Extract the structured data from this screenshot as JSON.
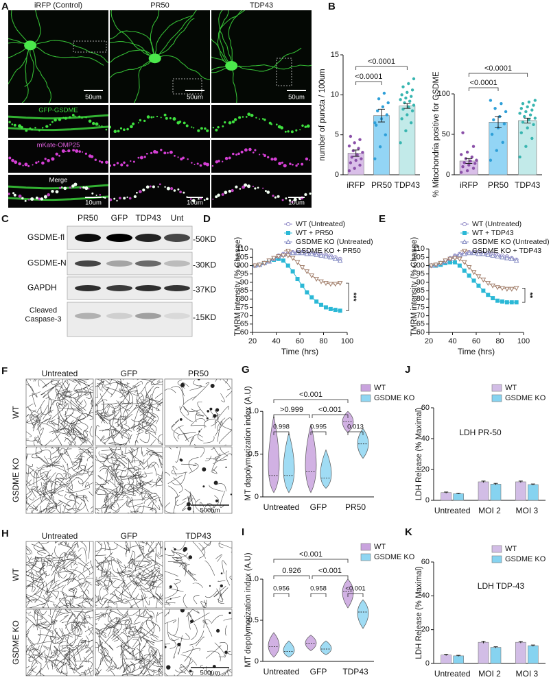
{
  "image_panels": {
    "A": {
      "letter": "A",
      "columns": [
        "iRFP (Control)",
        "PR50",
        "TDP43"
      ],
      "scale_top": [
        "50um",
        "50um",
        "50um"
      ],
      "rows": [
        "GFP-GSDME",
        "mKate-OMP25",
        "Merge"
      ],
      "scale_bottom": [
        "10um",
        "10um",
        "10um"
      ]
    },
    "F": {
      "letter": "F",
      "columns": [
        "Untreated",
        "GFP",
        "PR50"
      ],
      "rows": [
        "WT",
        "GSDME KO"
      ],
      "scale": "500um"
    },
    "H": {
      "letter": "H",
      "columns": [
        "Untreated",
        "GFP",
        "TDP43"
      ],
      "rows": [
        "WT",
        "GSDME KO"
      ],
      "scale": "500um"
    }
  },
  "blot": {
    "letter": "C",
    "lanes": [
      "PR50",
      "GFP",
      "TDP43",
      "Unt"
    ],
    "rows": [
      {
        "name": "GSDME-fl",
        "size": "-50KD"
      },
      {
        "name": "GSDME-N",
        "size": "-30KD"
      },
      {
        "name": "GAPDH",
        "size": "-37KD"
      },
      {
        "name": "Cleaved Caspase-3",
        "size": "-15KD"
      }
    ]
  },
  "chart_data": [
    {
      "type": "bar",
      "letter": "B",
      "ylabel": "number of puncta / 100um",
      "categories": [
        "iRFP",
        "PR50",
        "TDP43"
      ],
      "colors": [
        "#d9bfe8",
        "#93d5f5",
        "#c2eae9"
      ],
      "point_colors": [
        "#8a4fa8",
        "#2e9fd8",
        "#38b5b0"
      ],
      "values": [
        2.7,
        7.4,
        8.6
      ],
      "errors": [
        0.4,
        0.8,
        0.3
      ],
      "points": [
        [
          0.5,
          0.8,
          1.2,
          1.5,
          1.8,
          2.0,
          2.2,
          2.5,
          2.8,
          3.0,
          3.3,
          3.6,
          4.0,
          4.4,
          4.8
        ],
        [
          2.0,
          3.5,
          5.0,
          6.2,
          7.0,
          7.5,
          8.0,
          8.5,
          9.0,
          9.5,
          10.2,
          6.5
        ],
        [
          4.0,
          5.5,
          6.5,
          7.0,
          7.5,
          8.0,
          8.2,
          8.5,
          8.7,
          9.0,
          9.2,
          9.4,
          9.6,
          9.8,
          10.0,
          10.3,
          10.6,
          11.0,
          11.4,
          12.0
        ]
      ],
      "ylim": [
        0,
        15
      ],
      "yticks": [
        0,
        5,
        10,
        15
      ],
      "annotations": [
        "<0.0001",
        "<0.0001"
      ]
    },
    {
      "type": "bar",
      "ylabel": "% Mitochondria positive for GSDME",
      "categories": [
        "iRFP",
        "PR50",
        "TDP43"
      ],
      "colors": [
        "#d9bfe8",
        "#93d5f5",
        "#c2eae9"
      ],
      "point_colors": [
        "#8a4fa8",
        "#2e9fd8",
        "#38b5b0"
      ],
      "values": [
        17,
        65,
        67
      ],
      "errors": [
        3,
        7,
        3
      ],
      "points": [
        [
          3,
          5,
          8,
          10,
          12,
          14,
          15,
          17,
          18,
          20,
          22,
          25,
          28,
          35,
          52
        ],
        [
          18,
          30,
          40,
          50,
          58,
          63,
          68,
          72,
          78,
          82,
          88,
          92
        ],
        [
          22,
          35,
          45,
          52,
          58,
          62,
          65,
          68,
          70,
          72,
          74,
          76,
          78,
          80,
          82,
          84,
          86,
          88,
          90,
          92
        ]
      ],
      "ylim": [
        0,
        100
      ],
      "yticks": [
        0,
        50,
        100
      ],
      "annotations": [
        "<0.0001",
        "<0.0001"
      ]
    },
    {
      "type": "line",
      "letter": "D",
      "ylabel": "TMRM intensity (% Change)",
      "xlabel": "Time (hrs)",
      "x": [
        22,
        26,
        30,
        34,
        38,
        42,
        46,
        50,
        54,
        58,
        62,
        66,
        70,
        74,
        78,
        82,
        86,
        90,
        94
      ],
      "series": [
        {
          "name": "WT (Untreated)",
          "color": "#8c84c4",
          "marker": "circle",
          "values": [
            100,
            100.5,
            101.5,
            103,
            104.5,
            106,
            107,
            107.5,
            108,
            108,
            108,
            108,
            107.5,
            107,
            107,
            106.5,
            106,
            105,
            104
          ]
        },
        {
          "name": "WT + PR50",
          "color": "#2bb8d6",
          "marker": "square",
          "values": [
            100,
            100.5,
            101.5,
            102.5,
            103.5,
            104,
            103,
            100,
            96.5,
            92,
            88,
            84,
            81,
            78.5,
            76.5,
            75,
            74,
            73.5,
            73
          ]
        },
        {
          "name": "GSDME KO (Untreated)",
          "color": "#7f86c0",
          "marker": "triangle",
          "values": [
            100,
            100.5,
            101.5,
            102.5,
            104,
            105.5,
            106.5,
            107,
            107.5,
            107.5,
            107.5,
            107,
            107,
            106.5,
            106,
            105.5,
            105,
            104,
            103
          ]
        },
        {
          "name": "GSDME KO + PR50",
          "color": "#a07c68",
          "marker": "triangle-down",
          "values": [
            100,
            100.5,
            101.5,
            103,
            104.5,
            105.5,
            106,
            106,
            104.5,
            102,
            99,
            96.5,
            94,
            92,
            90.5,
            89.5,
            89,
            89,
            89.5
          ]
        }
      ],
      "xlim": [
        20,
        100
      ],
      "xticks": [
        20,
        40,
        60,
        80,
        100
      ],
      "ylim": [
        60,
        115
      ],
      "yticks": [
        60,
        65,
        70,
        75,
        80,
        85,
        90,
        95,
        100,
        105,
        110
      ],
      "annotation": "***"
    },
    {
      "type": "line",
      "letter": "E",
      "ylabel": "TMRM intensity (% Change)",
      "xlabel": "Time (hrs)",
      "x": [
        22,
        26,
        30,
        34,
        38,
        42,
        46,
        50,
        54,
        58,
        62,
        66,
        70,
        74,
        78,
        82,
        86,
        90,
        94
      ],
      "series": [
        {
          "name": "WT (Untreated)",
          "color": "#8c84c4",
          "marker": "circle",
          "values": [
            100,
            100.5,
            101.5,
            103,
            104.5,
            106,
            107,
            107.5,
            108,
            108,
            108,
            107.5,
            107.5,
            107,
            106.5,
            106,
            105.5,
            104.5,
            103.5
          ]
        },
        {
          "name": "WT + TDP43",
          "color": "#2bb8d6",
          "marker": "square",
          "values": [
            100,
            100,
            100.5,
            101.5,
            102,
            102,
            100,
            97,
            94,
            91,
            88,
            85,
            82.5,
            80.5,
            79,
            78.5,
            78,
            78,
            78
          ]
        },
        {
          "name": "GSDME KO (Untreated)",
          "color": "#7f86c0",
          "marker": "triangle",
          "values": [
            100,
            100.5,
            101.5,
            102.5,
            104,
            105.5,
            106.5,
            107,
            107.5,
            107.5,
            107,
            107,
            106.5,
            106,
            105.5,
            105,
            104.5,
            104,
            103
          ]
        },
        {
          "name": "GSDME KO + TDP43",
          "color": "#a07c68",
          "marker": "triangle-down",
          "values": [
            100,
            100.5,
            101.5,
            103,
            104,
            104.5,
            104,
            102,
            99,
            96,
            93.5,
            91.5,
            89.5,
            88,
            87,
            86.5,
            86,
            86,
            86.5
          ]
        }
      ],
      "xlim": [
        20,
        100
      ],
      "xticks": [
        20,
        40,
        60,
        80,
        100
      ],
      "ylim": [
        60,
        115
      ],
      "yticks": [
        60,
        65,
        70,
        75,
        80,
        85,
        90,
        95,
        100,
        105,
        110
      ],
      "annotation": "**"
    },
    {
      "type": "violin",
      "letter": "G",
      "ylabel": "MT depolymerization index (A.U)",
      "categories": [
        "Untreated",
        "GFP",
        "PR50"
      ],
      "series": [
        {
          "name": "WT",
          "color": "#c9a3de",
          "values": [
            0.25,
            0.3,
            0.88
          ],
          "ranges": [
            [
              0.05,
              0.95
            ],
            [
              0.05,
              0.85
            ],
            [
              0.75,
              1.0
            ]
          ]
        },
        {
          "name": "GSDME KO",
          "color": "#8fd6f2",
          "values": [
            0.25,
            0.22,
            0.62
          ],
          "ranges": [
            [
              0.05,
              0.75
            ],
            [
              0.1,
              0.55
            ],
            [
              0.45,
              0.8
            ]
          ]
        }
      ],
      "ylim": [
        0,
        1.25
      ],
      "yticks": [
        0,
        0.5,
        {
          "value": 1,
          "label": "1.0"
        }
      ],
      "annotations": [
        "<0.001",
        ">0.999",
        "<0.001",
        "0.998",
        "0.995",
        "0.013"
      ]
    },
    {
      "type": "grouped_bar",
      "letter": "J",
      "ylabel": "LDH Release (% Maximal)",
      "annotation": "LDH PR-50",
      "categories": [
        "Untreated",
        "MOI 2",
        "MOI 3"
      ],
      "series": [
        {
          "name": "WT",
          "color": "#d2bde6",
          "values": [
            5,
            12,
            12
          ],
          "errors": [
            0.4,
            0.5,
            0.5
          ]
        },
        {
          "name": "GSDME KO",
          "color": "#86d3f0",
          "values": [
            4.3,
            10.5,
            10.2
          ],
          "errors": [
            0.3,
            0.5,
            0.4
          ]
        }
      ],
      "ylim": [
        0,
        60
      ],
      "yticks": [
        0,
        20,
        40,
        60
      ]
    },
    {
      "type": "violin",
      "letter": "I",
      "ylabel": "MT depolymerization index (A.U)",
      "categories": [
        "Untreated",
        "GFP",
        "TDP43"
      ],
      "series": [
        {
          "name": "WT",
          "color": "#c9a3de",
          "values": [
            0.18,
            0.22,
            0.85
          ],
          "ranges": [
            [
              0.05,
              0.35
            ],
            [
              0.13,
              0.32
            ],
            [
              0.65,
              1.0
            ]
          ]
        },
        {
          "name": "GSDME KO",
          "color": "#8fd6f2",
          "values": [
            0.12,
            0.15,
            0.6
          ],
          "ranges": [
            [
              0.05,
              0.25
            ],
            [
              0.08,
              0.25
            ],
            [
              0.4,
              0.75
            ]
          ]
        }
      ],
      "ylim": [
        0,
        1.25
      ],
      "yticks": [
        0,
        0.5,
        {
          "value": 1,
          "label": "1.0"
        }
      ],
      "annotations": [
        "<0.001",
        "0.926",
        "<0.001",
        "0.956",
        "0.958",
        "<0.001"
      ]
    },
    {
      "type": "grouped_bar",
      "letter": "K",
      "ylabel": "LDH Release (% Maximal)",
      "annotation": "LDH TDP-43",
      "categories": [
        "Untreated",
        "MOI 2",
        "MOI 3"
      ],
      "series": [
        {
          "name": "WT",
          "color": "#d2bde6",
          "values": [
            5,
            12.5,
            12.5
          ],
          "errors": [
            0.4,
            0.6,
            0.5
          ]
        },
        {
          "name": "GSDME KO",
          "color": "#86d3f0",
          "values": [
            4.5,
            9.5,
            10.5
          ],
          "errors": [
            0.3,
            0.4,
            0.4
          ]
        }
      ],
      "ylim": [
        0,
        60
      ],
      "yticks": [
        0,
        20,
        40,
        60
      ]
    }
  ]
}
